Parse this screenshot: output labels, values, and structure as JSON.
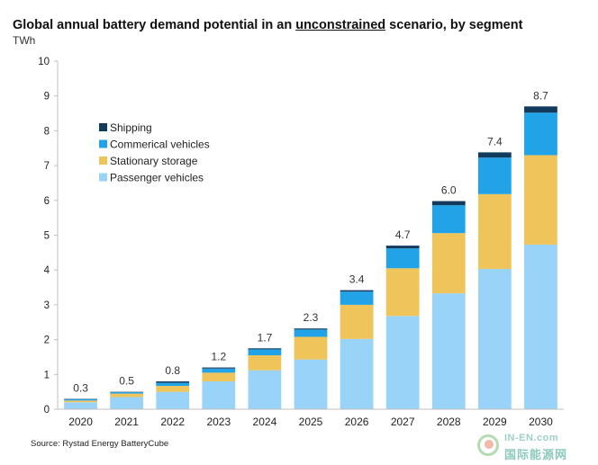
{
  "title": {
    "before": "Global annual battery demand potential in an ",
    "underlined": "unconstrained",
    "after": " scenario, by segment"
  },
  "unit_label": "TWh",
  "source": "Source: Rystad Energy BatteryCube",
  "watermark": {
    "top": "IN-EN.com",
    "bottom": "国际能源网"
  },
  "chart_data": {
    "type": "bar",
    "stacked": true,
    "categories": [
      "2020",
      "2021",
      "2022",
      "2023",
      "2024",
      "2025",
      "2026",
      "2027",
      "2028",
      "2029",
      "2030"
    ],
    "series": [
      {
        "name": "Passenger vehicles",
        "color": "#99d3f7",
        "values": [
          0.2,
          0.35,
          0.5,
          0.8,
          1.12,
          1.43,
          2.02,
          2.68,
          3.33,
          4.03,
          4.73
        ]
      },
      {
        "name": "Stationary storage",
        "color": "#efc55b",
        "values": [
          0.05,
          0.1,
          0.17,
          0.25,
          0.43,
          0.65,
          0.98,
          1.37,
          1.73,
          2.15,
          2.57
        ]
      },
      {
        "name": "Commerical vehicles",
        "color": "#22a3e8",
        "values": [
          0.04,
          0.04,
          0.09,
          0.12,
          0.17,
          0.21,
          0.38,
          0.57,
          0.8,
          1.05,
          1.22
        ]
      },
      {
        "name": "Shipping",
        "color": "#123a5c",
        "values": [
          0.01,
          0.01,
          0.04,
          0.03,
          0.03,
          0.03,
          0.04,
          0.08,
          0.12,
          0.15,
          0.18
        ]
      }
    ],
    "totals": [
      "0.3",
      "0.5",
      "0.8",
      "1.2",
      "1.7",
      "2.3",
      "3.4",
      "4.7",
      "6.0",
      "7.4",
      "8.7"
    ],
    "ylim": [
      0,
      10
    ],
    "yticks": [
      "0",
      "1",
      "2",
      "3",
      "4",
      "5",
      "6",
      "7",
      "8",
      "9",
      "10"
    ],
    "legend": [
      "Shipping",
      "Commerical vehicles",
      "Stationary storage",
      "Passenger vehicles"
    ],
    "legend_colors": [
      "#123a5c",
      "#22a3e8",
      "#efc55b",
      "#99d3f7"
    ],
    "legend_position": "top-left",
    "grid": false
  }
}
